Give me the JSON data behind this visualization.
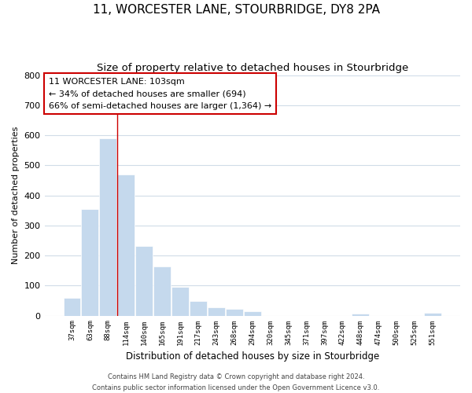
{
  "title": "11, WORCESTER LANE, STOURBRIDGE, DY8 2PA",
  "subtitle": "Size of property relative to detached houses in Stourbridge",
  "bar_labels": [
    "37sqm",
    "63sqm",
    "88sqm",
    "114sqm",
    "140sqm",
    "165sqm",
    "191sqm",
    "217sqm",
    "243sqm",
    "268sqm",
    "294sqm",
    "320sqm",
    "345sqm",
    "371sqm",
    "397sqm",
    "422sqm",
    "448sqm",
    "474sqm",
    "500sqm",
    "525sqm",
    "551sqm"
  ],
  "bar_values": [
    58,
    355,
    590,
    470,
    232,
    163,
    95,
    48,
    27,
    22,
    15,
    0,
    0,
    0,
    0,
    0,
    7,
    0,
    0,
    0,
    8
  ],
  "bar_color": "#c5d9ed",
  "bar_edge_color": "#ffffff",
  "property_line_x": 2.5,
  "property_line_color": "#cc0000",
  "ylabel": "Number of detached properties",
  "xlabel": "Distribution of detached houses by size in Stourbridge",
  "ylim": [
    0,
    800
  ],
  "yticks": [
    0,
    100,
    200,
    300,
    400,
    500,
    600,
    700,
    800
  ],
  "annotation_line1": "11 WORCESTER LANE: 103sqm",
  "annotation_line2": "← 34% of detached houses are smaller (694)",
  "annotation_line3": "66% of semi-detached houses are larger (1,364) →",
  "footer_line1": "Contains HM Land Registry data © Crown copyright and database right 2024.",
  "footer_line2": "Contains public sector information licensed under the Open Government Licence v3.0.",
  "background_color": "#ffffff",
  "plot_background": "#ffffff",
  "grid_color": "#d0dce8",
  "title_fontsize": 11,
  "subtitle_fontsize": 9.5
}
